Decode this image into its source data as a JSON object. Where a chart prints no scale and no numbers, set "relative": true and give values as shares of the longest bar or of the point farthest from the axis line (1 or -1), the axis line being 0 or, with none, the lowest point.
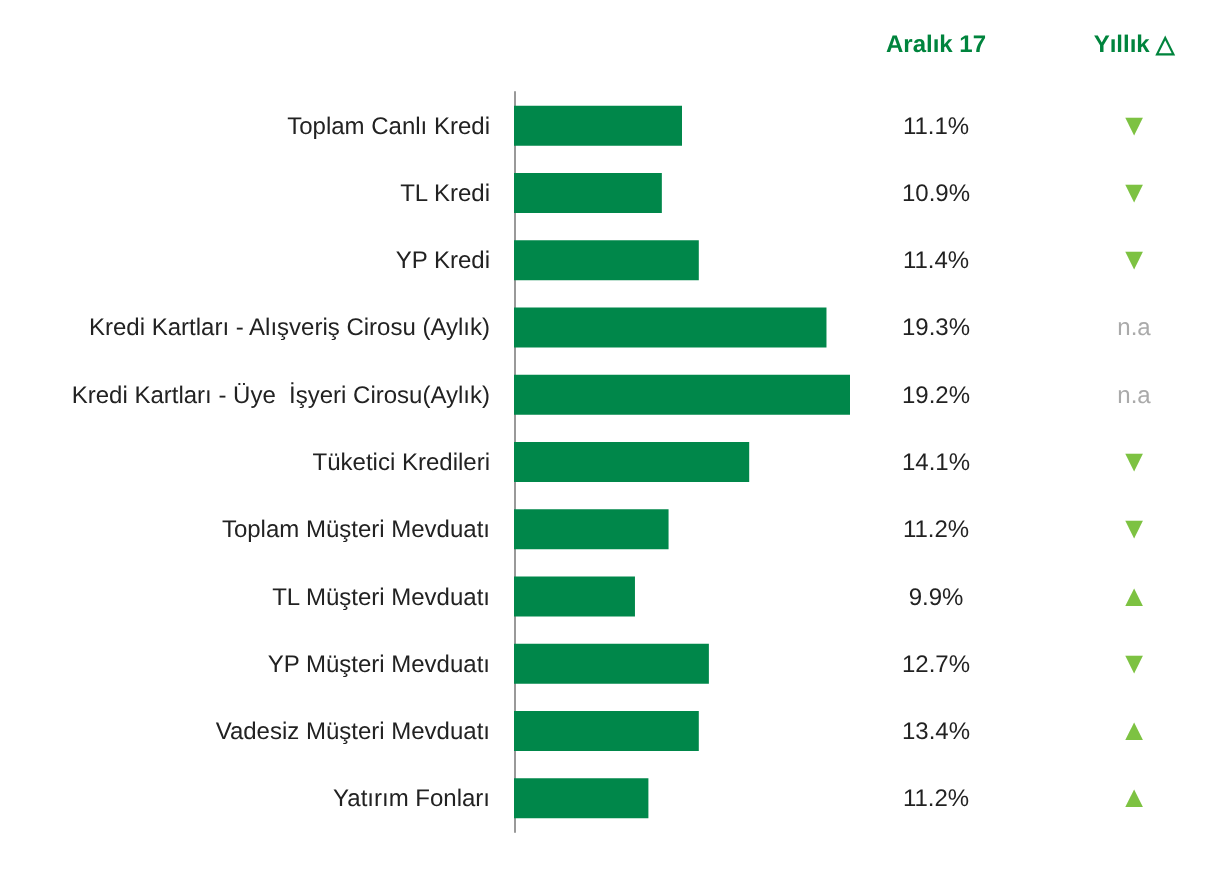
{
  "chart_data": {
    "type": "bar",
    "orientation": "horizontal",
    "relative": true,
    "color": "#00874a",
    "categories": [
      "Toplam Canlı Kredi",
      "TL Kredi",
      "YP Kredi",
      "Kredi Kartları - Alışveriş Cirosu (Aylık)",
      "Kredi Kartları - Üye  İşyeri Cirosu(Aylık)",
      "Tüketici Kredileri",
      "Toplam Müşteri Mevduatı",
      "TL Müşteri Mevduatı",
      "YP Müşteri Mevduatı",
      "Vadesiz Müşteri Mevduatı",
      "Yatırım Fonları"
    ],
    "values": [
      0.5,
      0.44,
      0.55,
      0.93,
      1,
      0.7,
      0.46,
      0.36,
      0.58,
      0.55,
      0.4
    ],
    "annotations": [
      "Aralık 17",
      "Yıllık △",
      "11.1%",
      "10.9%",
      "11.4%",
      "19.3%",
      "19.2%",
      "14.1%",
      "11.2%",
      "9.9%",
      "12.7%",
      "13.4%",
      "11.2%",
      "▼",
      "▼",
      "▼",
      "n.a",
      "n.a",
      "▼",
      "▼",
      "▲",
      "▼",
      "▲",
      "▲"
    ]
  }
}
